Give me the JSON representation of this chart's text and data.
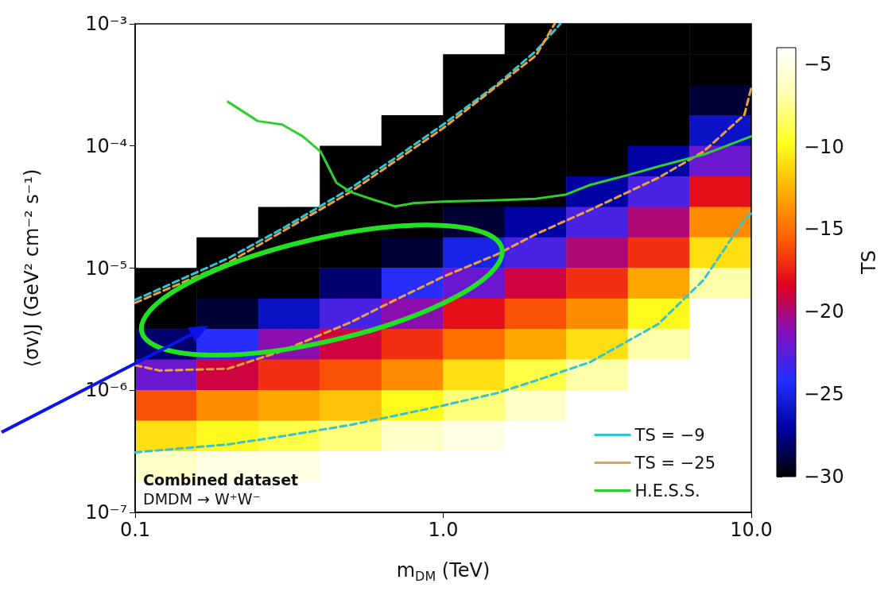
{
  "chart_data": [
    {
      "type": "heatmap",
      "clabel": "TS",
      "clim": [
        -30,
        -4
      ],
      "cticks": [
        {
          "value": -5,
          "label": "−5"
        },
        {
          "value": -10,
          "label": "−10"
        },
        {
          "value": -15,
          "label": "−15"
        },
        {
          "value": -20,
          "label": "−20"
        },
        {
          "value": -25,
          "label": "−25"
        },
        {
          "value": -30,
          "label": "−30"
        }
      ],
      "categories": [
        null,
        null,
        null,
        null,
        null,
        null,
        null,
        null,
        null,
        null
      ],
      "y_categories": [
        null,
        null,
        null,
        null,
        null,
        null,
        null,
        null,
        null,
        null,
        null,
        null,
        null,
        null,
        null,
        null
      ],
      "cells": [
        [
          null,
          null,
          null,
          null,
          null,
          null,
          -30,
          -30,
          -30,
          -30
        ],
        [
          null,
          null,
          null,
          null,
          null,
          -30,
          -30,
          -30,
          -30,
          -30
        ],
        [
          null,
          null,
          null,
          null,
          null,
          -30,
          -30,
          -30,
          -30,
          -29
        ],
        [
          null,
          null,
          null,
          null,
          -30,
          -30,
          -30,
          -30,
          -30,
          -26
        ],
        [
          null,
          null,
          null,
          -30,
          -30,
          -30,
          -30,
          -30,
          -27,
          -22
        ],
        [
          null,
          null,
          null,
          -30,
          -30,
          -30,
          -30,
          -27,
          -23,
          -18
        ],
        [
          null,
          null,
          -30,
          -30,
          -30,
          -29,
          -27,
          -23,
          -20,
          -14
        ],
        [
          null,
          -30,
          -30,
          -30,
          -29,
          -25,
          -23,
          -20,
          -17,
          -11
        ],
        [
          -30,
          -30,
          -30,
          -28,
          -24,
          -22,
          -19,
          -17,
          -13,
          -7
        ],
        [
          -30,
          -29,
          -26,
          -23,
          -21,
          -18,
          -16,
          -14,
          -10,
          -4
        ],
        [
          -28,
          -24,
          -21,
          -19,
          -17,
          -15,
          -13,
          -11,
          -7,
          -4
        ],
        [
          -22,
          -19,
          -17,
          -16,
          -14,
          -11,
          -9,
          -7,
          -4,
          -4
        ],
        [
          -16,
          -14,
          -13,
          -12,
          -10,
          -8,
          -6,
          -4,
          -4,
          -4
        ],
        [
          -11,
          -10,
          -9,
          -8,
          -6,
          -5,
          -4,
          -4,
          -4,
          -4
        ],
        [
          -6,
          -5,
          -5,
          -4,
          -4,
          -4,
          -4,
          -4,
          -4,
          -4
        ],
        [
          -4,
          -4,
          -4,
          -4,
          -4,
          -4,
          -4,
          -4,
          -4,
          -4
        ]
      ]
    },
    {
      "type": "line",
      "xlabel": "m$_{DM}$ (TeV)",
      "ylabel": "⟨σv⟩J (GeV² cm⁻² s⁻¹)",
      "log": "xy",
      "grid": false,
      "legend": "bottom right",
      "marker": "none",
      "xlim": [
        0.1,
        10
      ],
      "xticks": [
        0.1,
        {
          "value": 1,
          "label": "1.0"
        },
        {
          "value": 10,
          "label": "10.0"
        }
      ],
      "ylim": [
        1e-07,
        0.001
      ],
      "yticks": [
        {
          "value": 1e-07,
          "label": "10⁻⁷"
        },
        {
          "value": 1e-06,
          "label": "10⁻⁶"
        },
        {
          "value": 1e-05,
          "label": "10⁻⁵"
        },
        {
          "value": 0.0001,
          "label": "10⁻⁴"
        },
        {
          "value": 0.001,
          "label": "10⁻³"
        }
      ],
      "annotations": [
        "Combined dataset",
        "DMDM → W⁺W⁻"
      ],
      "series": [
        {
          "name": "TS = −9",
          "color": "#33c4d4",
          "line_style": "dashed",
          "x": [
            0.1,
            0.2,
            0.3,
            0.5,
            0.7,
            1,
            1.5,
            2,
            3,
            5,
            7,
            9.5,
            10,
            null,
            0.1,
            0.2,
            0.3,
            0.5,
            0.7,
            1,
            1.5,
            2,
            2.4
          ],
          "values": [
            3.1e-07,
            3.6e-07,
            4.2e-07,
            5.2e-07,
            6.2e-07,
            7.5e-07,
            9.5e-07,
            1.2e-06,
            1.7e-06,
            3.5e-06,
            8e-06,
            2.5e-05,
            2.8e-05,
            null,
            5.5e-06,
            1.2e-05,
            2.1e-05,
            4.5e-05,
            8e-05,
            0.00015,
            0.00032,
            0.0006,
            0.001
          ]
        },
        {
          "name": "TS = −25",
          "color": "#e8a040",
          "line_style": "dashed",
          "x": [
            0.1,
            0.12,
            0.2,
            0.3,
            0.5,
            0.7,
            1,
            1.5,
            2,
            3,
            5,
            7,
            9.5,
            10,
            null,
            0.1,
            0.2,
            0.5,
            1,
            2,
            2.3
          ],
          "values": [
            1.6e-06,
            1.45e-06,
            1.5e-06,
            2.1e-06,
            3.6e-06,
            5.5e-06,
            8.5e-06,
            1.3e-05,
            1.9e-05,
            3e-05,
            5.5e-05,
            9e-05,
            0.00018,
            0.0003,
            null,
            5.2e-06,
            1.1e-05,
            4.2e-05,
            0.00014,
            0.00055,
            0.001
          ]
        },
        {
          "name": "H.E.S.S.",
          "color": "#33cc33",
          "line_style": "solid",
          "x": [
            0.2,
            0.25,
            0.3,
            0.35,
            0.4,
            0.45,
            0.5,
            0.6,
            0.7,
            0.8,
            1,
            1.5,
            2,
            2.5,
            3,
            4,
            5,
            7,
            10
          ],
          "values": [
            0.00023,
            0.00016,
            0.00015,
            0.00012,
            9e-05,
            5e-05,
            4.2e-05,
            3.6e-05,
            3.2e-05,
            3.4e-05,
            3.5e-05,
            3.6e-05,
            3.7e-05,
            4e-05,
            4.8e-05,
            5.8e-05,
            6.8e-05,
            8.5e-05,
            0.00012
          ]
        }
      ]
    }
  ]
}
